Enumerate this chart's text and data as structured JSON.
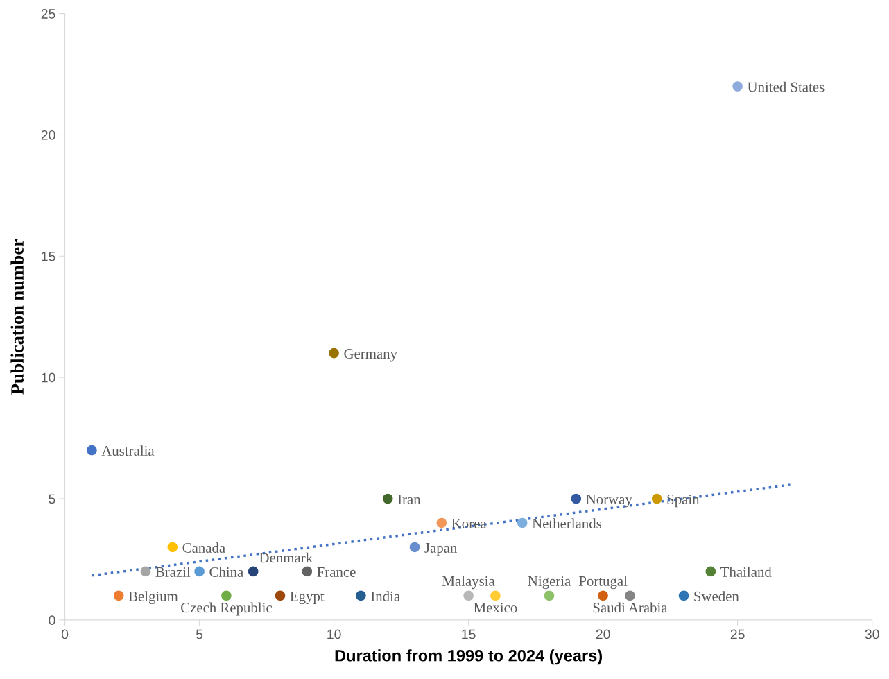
{
  "chart_data": {
    "type": "scatter",
    "xlabel": "Duration from 1999 to 2024 (years)",
    "ylabel": "Publication number",
    "xlim": [
      0,
      30
    ],
    "xticks": [
      0,
      5,
      10,
      15,
      20,
      25,
      30
    ],
    "ylim": [
      0,
      25
    ],
    "yticks": [
      0,
      5,
      10,
      15,
      20,
      25
    ],
    "grid": false,
    "legend": false,
    "marker": "circle",
    "series": [
      {
        "name": "Australia",
        "color": "#4472c4",
        "x": [
          1
        ],
        "values": [
          7
        ]
      },
      {
        "name": "Belgium",
        "color": "#ed7d31",
        "x": [
          2
        ],
        "values": [
          1
        ]
      },
      {
        "name": "Brazil",
        "color": "#a5a5a5",
        "x": [
          3
        ],
        "values": [
          2
        ]
      },
      {
        "name": "Canada",
        "color": "#ffc000",
        "x": [
          4
        ],
        "values": [
          3
        ]
      },
      {
        "name": "China",
        "color": "#5b9bd5",
        "x": [
          5
        ],
        "values": [
          2
        ]
      },
      {
        "name": "Czech Republic",
        "color": "#70ad47",
        "x": [
          6
        ],
        "values": [
          1
        ]
      },
      {
        "name": "Denmark",
        "color": "#264478",
        "x": [
          7
        ],
        "values": [
          2
        ]
      },
      {
        "name": "Egypt",
        "color": "#9e480e",
        "x": [
          8
        ],
        "values": [
          1
        ]
      },
      {
        "name": "France",
        "color": "#636363",
        "x": [
          9
        ],
        "values": [
          2
        ]
      },
      {
        "name": "Germany",
        "color": "#997300",
        "x": [
          10
        ],
        "values": [
          11
        ]
      },
      {
        "name": "India",
        "color": "#255e91",
        "x": [
          11
        ],
        "values": [
          1
        ]
      },
      {
        "name": "Iran",
        "color": "#43682b",
        "x": [
          12
        ],
        "values": [
          5
        ]
      },
      {
        "name": "Japan",
        "color": "#698ed0",
        "x": [
          13
        ],
        "values": [
          3
        ]
      },
      {
        "name": "Korea",
        "color": "#f1975a",
        "x": [
          14
        ],
        "values": [
          4
        ]
      },
      {
        "name": "Malaysia",
        "color": "#b7b7b7",
        "x": [
          15
        ],
        "values": [
          1
        ]
      },
      {
        "name": "Mexico",
        "color": "#ffcd33",
        "x": [
          16
        ],
        "values": [
          1
        ]
      },
      {
        "name": "Netherlands",
        "color": "#7cafdd",
        "x": [
          17
        ],
        "values": [
          4
        ]
      },
      {
        "name": "Nigeria",
        "color": "#8cc168",
        "x": [
          18
        ],
        "values": [
          1
        ]
      },
      {
        "name": "Norway",
        "color": "#335aa1",
        "x": [
          19
        ],
        "values": [
          5
        ]
      },
      {
        "name": "Portugal",
        "color": "#d26012",
        "x": [
          20
        ],
        "values": [
          1
        ]
      },
      {
        "name": "Saudi Arabia",
        "color": "#848484",
        "x": [
          21
        ],
        "values": [
          1
        ]
      },
      {
        "name": "Spain",
        "color": "#cc9a00",
        "x": [
          22
        ],
        "values": [
          5
        ]
      },
      {
        "name": "Sweden",
        "color": "#2e75b6",
        "x": [
          23
        ],
        "values": [
          1
        ]
      },
      {
        "name": "Thailand",
        "color": "#548235",
        "x": [
          24
        ],
        "values": [
          2
        ]
      },
      {
        "name": "United States",
        "color": "#8faadc",
        "x": [
          25
        ],
        "values": [
          22
        ]
      },
      {
        "type": "line",
        "color": "#4472c4",
        "line_style": "dotted",
        "marker": "none",
        "x": [
          1,
          27
        ],
        "values": [
          1.83,
          5.58
        ]
      }
    ]
  }
}
